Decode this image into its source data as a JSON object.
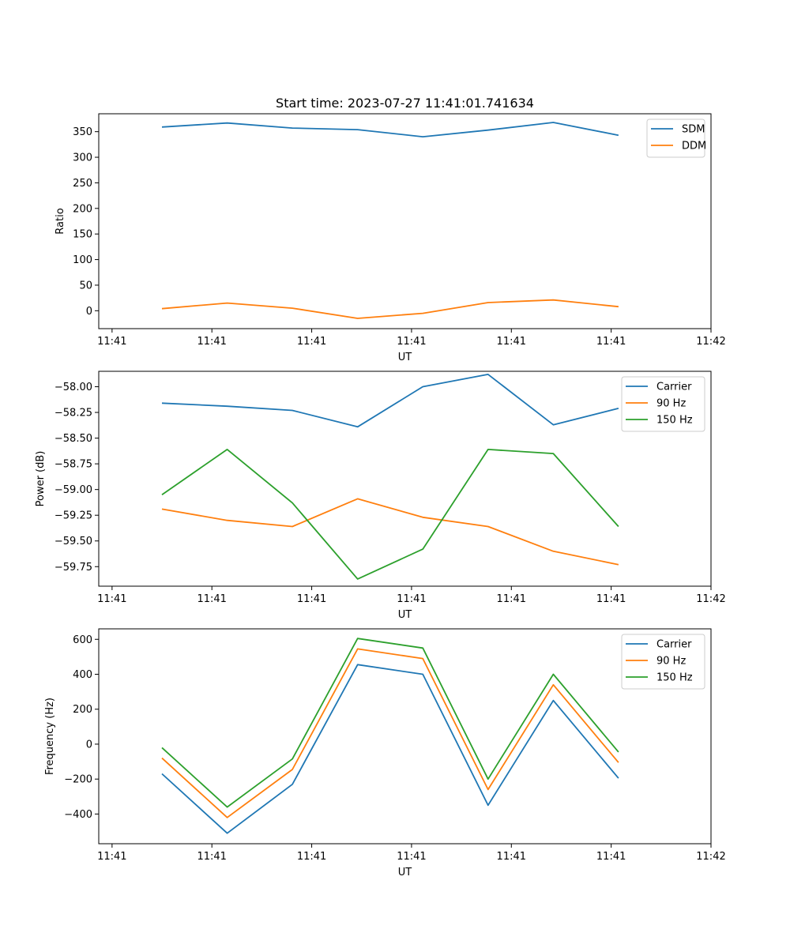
{
  "figure_title": "Start time: 2023-07-27 11:41:01.741634",
  "colors": {
    "blue": "#1f77b4",
    "orange": "#ff7f0e",
    "green": "#2ca02c"
  },
  "chart_data": [
    {
      "type": "line",
      "title": "Start time: 2023-07-27 11:41:01.741634",
      "xlabel": "UT",
      "ylabel": "Ratio",
      "xlim": [
        -0.2,
        9.0
      ],
      "ylim": [
        -35,
        385
      ],
      "x_ticks": [
        0,
        1.5,
        3.0,
        4.5,
        6.0,
        7.5,
        9.0
      ],
      "x_tick_labels": [
        "11:41",
        "11:41",
        "11:41",
        "11:41",
        "11:41",
        "11:41",
        "11:42"
      ],
      "y_ticks": [
        0,
        50,
        100,
        150,
        200,
        250,
        300,
        350
      ],
      "y_tick_labels": [
        "0",
        "50",
        "100",
        "150",
        "200",
        "250",
        "300",
        "350"
      ],
      "x": [
        0.75,
        1.73,
        2.71,
        3.69,
        4.67,
        5.65,
        6.63,
        7.61
      ],
      "legend": "top-right",
      "series": [
        {
          "name": "SDM",
          "color": "#1f77b4",
          "values": [
            359,
            367,
            357,
            354,
            340,
            353,
            368,
            343
          ]
        },
        {
          "name": "DDM",
          "color": "#ff7f0e",
          "values": [
            4,
            15,
            5,
            -15,
            -5,
            16,
            21,
            8
          ]
        }
      ]
    },
    {
      "type": "line",
      "title": "",
      "xlabel": "UT",
      "ylabel": "Power (dB)",
      "xlim": [
        -0.2,
        9.0
      ],
      "ylim": [
        -59.94,
        -57.85
      ],
      "x_ticks": [
        0,
        1.5,
        3.0,
        4.5,
        6.0,
        7.5,
        9.0
      ],
      "x_tick_labels": [
        "11:41",
        "11:41",
        "11:41",
        "11:41",
        "11:41",
        "11:41",
        "11:42"
      ],
      "y_ticks": [
        -59.75,
        -59.5,
        -59.25,
        -59.0,
        -58.75,
        -58.5,
        -58.25,
        -58.0
      ],
      "y_tick_labels": [
        "−59.75",
        "−59.50",
        "−59.25",
        "−59.00",
        "−58.75",
        "−58.50",
        "−58.25",
        "−58.00"
      ],
      "x": [
        0.75,
        1.73,
        2.71,
        3.69,
        4.67,
        5.65,
        6.63,
        7.61
      ],
      "legend": "top-right",
      "series": [
        {
          "name": "Carrier",
          "color": "#1f77b4",
          "values": [
            -58.16,
            -58.19,
            -58.23,
            -58.39,
            -58.0,
            -57.88,
            -58.37,
            -58.21
          ]
        },
        {
          "name": "90 Hz",
          "color": "#ff7f0e",
          "values": [
            -59.19,
            -59.3,
            -59.36,
            -59.09,
            -59.27,
            -59.36,
            -59.6,
            -59.73
          ]
        },
        {
          "name": "150 Hz",
          "color": "#2ca02c",
          "values": [
            -59.05,
            -58.61,
            -59.13,
            -59.87,
            -59.58,
            -58.61,
            -58.65,
            -59.36
          ]
        }
      ]
    },
    {
      "type": "line",
      "title": "",
      "xlabel": "UT",
      "ylabel": "Frequency (Hz)",
      "xlim": [
        -0.2,
        9.0
      ],
      "ylim": [
        -570,
        660
      ],
      "x_ticks": [
        0,
        1.5,
        3.0,
        4.5,
        6.0,
        7.5,
        9.0
      ],
      "x_tick_labels": [
        "11:41",
        "11:41",
        "11:41",
        "11:41",
        "11:41",
        "11:41",
        "11:42"
      ],
      "y_ticks": [
        -400,
        -200,
        0,
        200,
        400,
        600
      ],
      "y_tick_labels": [
        "−400",
        "−200",
        "0",
        "200",
        "400",
        "600"
      ],
      "x": [
        0.75,
        1.73,
        2.71,
        3.69,
        4.67,
        5.65,
        6.63,
        7.61
      ],
      "legend": "top-right",
      "series": [
        {
          "name": "Carrier",
          "color": "#1f77b4",
          "values": [
            -170,
            -510,
            -230,
            455,
            400,
            -350,
            250,
            -195
          ]
        },
        {
          "name": "90 Hz",
          "color": "#ff7f0e",
          "values": [
            -80,
            -420,
            -145,
            545,
            490,
            -260,
            340,
            -105
          ]
        },
        {
          "name": "150 Hz",
          "color": "#2ca02c",
          "values": [
            -20,
            -360,
            -85,
            605,
            550,
            -200,
            400,
            -45
          ]
        }
      ]
    }
  ]
}
